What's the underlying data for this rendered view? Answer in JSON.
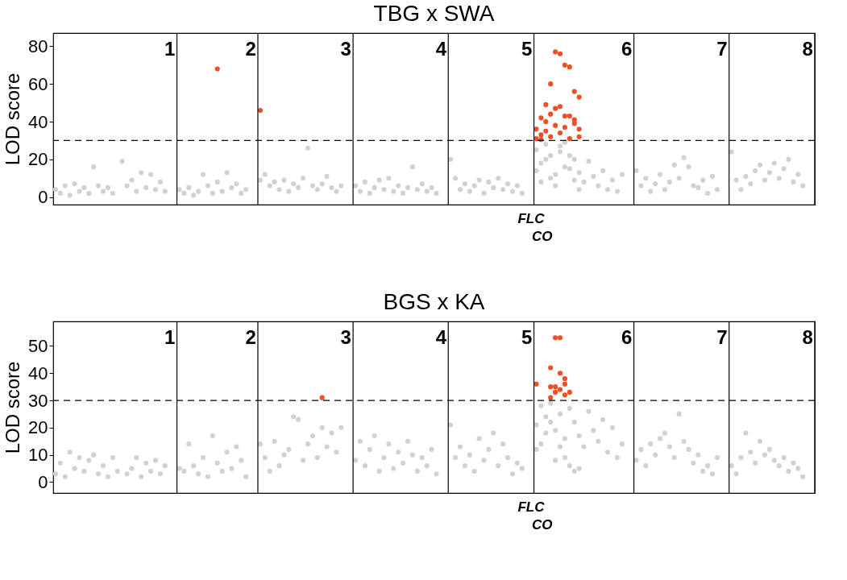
{
  "chart_data": [
    {
      "type": "scatter",
      "title": "TBG x SWA",
      "ylabel": "LOD score",
      "ylim": [
        -4,
        87
      ],
      "yticks": [
        0,
        20,
        40,
        60,
        80
      ],
      "grid": "x",
      "marker": "circle",
      "categories": [
        null,
        null,
        null,
        null,
        null,
        null,
        null,
        null,
        null,
        null,
        null,
        null,
        null,
        null,
        null,
        null,
        null,
        null,
        null,
        null,
        null,
        null,
        null,
        null,
        "1",
        null,
        null,
        null,
        null,
        null,
        null,
        null,
        null,
        null,
        null,
        null,
        null,
        null,
        null,
        null,
        null,
        "2",
        null,
        null,
        null,
        null,
        null,
        null,
        null,
        null,
        null,
        null,
        null,
        null,
        null,
        null,
        null,
        null,
        null,
        null,
        null,
        "3",
        null,
        null,
        null,
        null,
        null,
        null,
        null,
        null,
        null,
        null,
        null,
        null,
        null,
        null,
        null,
        null,
        null,
        null,
        null,
        "4",
        null,
        null,
        null,
        null,
        null,
        null,
        null,
        null,
        null,
        null,
        null,
        null,
        null,
        null,
        null,
        null,
        null,
        "5",
        null,
        null,
        null,
        null,
        null,
        null,
        null,
        null,
        null,
        null,
        null,
        null,
        null,
        null,
        null,
        null,
        null,
        null,
        null,
        null,
        "6",
        null,
        null,
        null,
        null,
        null,
        null,
        null,
        null,
        null,
        null,
        null,
        null,
        null,
        null,
        null,
        null,
        null,
        null,
        null,
        "7",
        null,
        null,
        null,
        null,
        null,
        null,
        null,
        null,
        null,
        null,
        null,
        null,
        null,
        null,
        null,
        null,
        null,
        "8",
        null
      ],
      "series": [
        {
          "color": "#d0d1d3",
          "values": [
            4,
            2,
            6,
            1,
            7,
            3,
            5,
            2,
            16,
            6,
            3,
            5,
            2,
            null,
            19,
            6,
            9,
            3,
            13,
            5,
            12,
            4,
            8,
            3,
            null,
            null,
            4,
            2,
            5,
            1,
            3,
            12,
            6,
            2,
            8,
            3,
            13,
            5,
            7,
            2,
            4,
            null,
            null,
            9,
            12,
            6,
            8,
            4,
            9,
            3,
            7,
            5,
            10,
            26,
            6,
            4,
            7,
            11,
            5,
            3,
            6,
            null,
            null,
            6,
            3,
            8,
            2,
            5,
            9,
            4,
            10,
            3,
            6,
            2,
            5,
            16,
            4,
            7,
            3,
            5,
            2,
            null,
            null,
            20,
            10,
            4,
            7,
            3,
            6,
            9,
            2,
            8,
            5,
            10,
            4,
            7,
            3,
            6,
            2,
            null,
            null,
            25,
            18,
            28,
            22,
            12,
            27,
            29,
            15,
            20,
            13,
            8,
            19,
            11,
            6,
            14,
            4,
            9,
            3,
            12,
            null,
            null,
            14,
            6,
            10,
            3,
            7,
            12,
            4,
            8,
            17,
            10,
            21,
            16,
            6,
            5,
            9,
            2,
            11,
            4,
            null,
            null,
            24,
            9,
            4,
            11,
            7,
            14,
            17,
            9,
            13,
            18,
            10,
            15,
            20,
            8,
            12,
            6,
            null,
            null
          ]
        },
        {
          "color": "#d0d1d3",
          "values": [
            null,
            null,
            null,
            null,
            null,
            null,
            null,
            null,
            null,
            null,
            null,
            null,
            null,
            null,
            null,
            null,
            null,
            null,
            null,
            null,
            null,
            null,
            null,
            null,
            null,
            null,
            null,
            null,
            null,
            null,
            null,
            null,
            null,
            null,
            null,
            null,
            null,
            null,
            null,
            null,
            null,
            null,
            null,
            null,
            null,
            null,
            null,
            null,
            null,
            null,
            null,
            null,
            null,
            null,
            null,
            null,
            null,
            null,
            null,
            null,
            null,
            null,
            null,
            null,
            null,
            null,
            null,
            null,
            null,
            null,
            null,
            null,
            null,
            null,
            null,
            null,
            null,
            null,
            null,
            null,
            null,
            null,
            null,
            null,
            null,
            null,
            null,
            null,
            null,
            null,
            null,
            null,
            null,
            null,
            null,
            null,
            null,
            null,
            null,
            null,
            null,
            14,
            8,
            20,
            10,
            6,
            24,
            16,
            22,
            9,
            4,
            null,
            null,
            null,
            null,
            null,
            null,
            null,
            null,
            null,
            null,
            null,
            null,
            null,
            null,
            null,
            null,
            null,
            null,
            null,
            null,
            null,
            null,
            null,
            null,
            null,
            null,
            null,
            null,
            null,
            null,
            null,
            null,
            null,
            null,
            null,
            null,
            null,
            null,
            null,
            null,
            null,
            null,
            null,
            null,
            null,
            null,
            null,
            null,
            null
          ]
        },
        {
          "color": "#f04e23",
          "values": [
            null,
            null,
            null,
            null,
            null,
            null,
            null,
            null,
            null,
            null,
            null,
            null,
            null,
            null,
            null,
            null,
            null,
            null,
            null,
            null,
            null,
            null,
            null,
            null,
            null,
            null,
            null,
            null,
            null,
            null,
            null,
            null,
            null,
            null,
            68,
            null,
            null,
            null,
            null,
            null,
            null,
            null,
            null,
            46,
            null,
            null,
            null,
            null,
            null,
            null,
            null,
            null,
            null,
            null,
            null,
            null,
            null,
            null,
            null,
            null,
            null,
            null,
            null,
            null,
            null,
            null,
            null,
            null,
            null,
            null,
            null,
            null,
            null,
            null,
            null,
            null,
            null,
            null,
            null,
            null,
            null,
            null,
            null,
            null,
            null,
            null,
            null,
            null,
            null,
            null,
            null,
            null,
            null,
            null,
            null,
            null,
            null,
            null,
            null,
            null,
            null,
            36,
            42,
            49,
            60,
            77,
            76,
            70,
            69,
            56,
            53,
            null,
            null,
            null,
            null,
            null,
            null,
            null,
            null,
            null,
            null,
            null,
            null,
            null,
            null,
            null,
            null,
            null,
            null,
            null,
            null,
            null,
            null,
            null,
            null,
            null,
            null,
            null,
            null,
            null,
            null,
            null,
            null,
            null,
            null,
            null,
            null,
            null,
            null,
            null,
            null,
            null,
            null,
            null,
            null,
            null,
            null,
            null,
            null,
            null
          ]
        },
        {
          "color": "#f04e23",
          "values": [
            null,
            null,
            null,
            null,
            null,
            null,
            null,
            null,
            null,
            null,
            null,
            null,
            null,
            null,
            null,
            null,
            null,
            null,
            null,
            null,
            null,
            null,
            null,
            null,
            null,
            null,
            null,
            null,
            null,
            null,
            null,
            null,
            null,
            null,
            null,
            null,
            null,
            null,
            null,
            null,
            null,
            null,
            null,
            null,
            null,
            null,
            null,
            null,
            null,
            null,
            null,
            null,
            null,
            null,
            null,
            null,
            null,
            null,
            null,
            null,
            null,
            null,
            null,
            null,
            null,
            null,
            null,
            null,
            null,
            null,
            null,
            null,
            null,
            null,
            null,
            null,
            null,
            null,
            null,
            null,
            null,
            null,
            null,
            null,
            null,
            null,
            null,
            null,
            null,
            null,
            null,
            null,
            null,
            null,
            null,
            null,
            null,
            null,
            null,
            null,
            null,
            31,
            33,
            40,
            44,
            47,
            48,
            43,
            43,
            41,
            36,
            null,
            null,
            null,
            null,
            null,
            null,
            null,
            null,
            null,
            null,
            null,
            null,
            null,
            null,
            null,
            null,
            null,
            null,
            null,
            null,
            null,
            null,
            null,
            null,
            null,
            null,
            null,
            null,
            null,
            null,
            null,
            null,
            null,
            null,
            null,
            null,
            null,
            null,
            null,
            null,
            null,
            null,
            null,
            null,
            null,
            null,
            null,
            null,
            null
          ]
        },
        {
          "color": "#f04e23",
          "values": [
            null,
            null,
            null,
            null,
            null,
            null,
            null,
            null,
            null,
            null,
            null,
            null,
            null,
            null,
            null,
            null,
            null,
            null,
            null,
            null,
            null,
            null,
            null,
            null,
            null,
            null,
            null,
            null,
            null,
            null,
            null,
            null,
            null,
            null,
            null,
            null,
            null,
            null,
            null,
            null,
            null,
            null,
            null,
            null,
            null,
            null,
            null,
            null,
            null,
            null,
            null,
            null,
            null,
            null,
            null,
            null,
            null,
            null,
            null,
            null,
            null,
            null,
            null,
            null,
            null,
            null,
            null,
            null,
            null,
            null,
            null,
            null,
            null,
            null,
            null,
            null,
            null,
            null,
            null,
            null,
            null,
            null,
            null,
            null,
            null,
            null,
            null,
            null,
            null,
            null,
            null,
            null,
            null,
            null,
            null,
            null,
            null,
            null,
            null,
            null,
            null,
            null,
            30.5,
            35,
            32,
            38,
            34,
            37,
            31,
            39,
            32,
            null,
            null,
            null,
            null,
            null,
            null,
            null,
            null,
            null,
            null,
            null,
            null,
            null,
            null,
            null,
            null,
            null,
            null,
            null,
            null,
            null,
            null,
            null,
            null,
            null,
            null,
            null,
            null,
            null,
            null,
            null,
            null,
            null,
            null,
            null,
            null,
            null,
            null,
            null,
            null,
            null,
            null,
            null,
            null,
            null,
            null,
            null,
            null,
            null
          ]
        }
      ],
      "ref_lines": [
        {
          "axis": "y",
          "value": 30,
          "color": "#000000",
          "line_style": "dashed"
        }
      ],
      "annotations": [
        "FLC",
        "CO"
      ]
    },
    {
      "type": "scatter",
      "title": "BGS x KA",
      "ylabel": "LOD score",
      "ylim": [
        -4,
        59
      ],
      "yticks": [
        0,
        10,
        20,
        30,
        40,
        50
      ],
      "grid": "x",
      "marker": "circle",
      "categories": [
        null,
        null,
        null,
        null,
        null,
        null,
        null,
        null,
        null,
        null,
        null,
        null,
        null,
        null,
        null,
        null,
        null,
        null,
        null,
        null,
        null,
        null,
        null,
        null,
        "1",
        null,
        null,
        null,
        null,
        null,
        null,
        null,
        null,
        null,
        null,
        null,
        null,
        null,
        null,
        null,
        null,
        "2",
        null,
        null,
        null,
        null,
        null,
        null,
        null,
        null,
        null,
        null,
        null,
        null,
        null,
        null,
        null,
        null,
        null,
        null,
        null,
        "3",
        null,
        null,
        null,
        null,
        null,
        null,
        null,
        null,
        null,
        null,
        null,
        null,
        null,
        null,
        null,
        null,
        null,
        null,
        null,
        "4",
        null,
        null,
        null,
        null,
        null,
        null,
        null,
        null,
        null,
        null,
        null,
        null,
        null,
        null,
        null,
        null,
        null,
        "5",
        null,
        null,
        null,
        null,
        null,
        null,
        null,
        null,
        null,
        null,
        null,
        null,
        null,
        null,
        null,
        null,
        null,
        null,
        null,
        null,
        "6",
        null,
        null,
        null,
        null,
        null,
        null,
        null,
        null,
        null,
        null,
        null,
        null,
        null,
        null,
        null,
        null,
        null,
        null,
        null,
        "7",
        null,
        null,
        null,
        null,
        null,
        null,
        null,
        null,
        null,
        null,
        null,
        null,
        null,
        null,
        null,
        null,
        null,
        "8",
        null
      ],
      "series": [
        {
          "color": "#d0d1d3",
          "values": [
            3,
            7,
            2,
            11,
            5,
            9,
            4,
            8,
            10,
            3,
            6,
            2,
            9,
            4,
            null,
            3,
            5,
            9,
            2,
            7,
            4,
            8,
            3,
            6,
            null,
            null,
            5,
            4,
            14,
            6,
            3,
            9,
            2,
            17,
            7,
            4,
            11,
            5,
            13,
            8,
            2,
            null,
            null,
            14,
            9,
            4,
            15,
            6,
            10,
            12,
            24,
            23,
            8,
            14,
            17,
            9,
            20,
            13,
            18,
            11,
            20,
            null,
            null,
            8,
            15,
            6,
            12,
            17,
            4,
            9,
            14,
            5,
            11,
            7,
            15,
            10,
            4,
            9,
            6,
            12,
            3,
            null,
            null,
            21,
            9,
            13,
            6,
            10,
            4,
            16,
            8,
            12,
            18,
            6,
            14,
            9,
            3,
            7,
            5,
            null,
            null,
            21,
            28,
            24,
            29,
            19,
            25,
            16,
            27,
            22,
            17,
            13,
            26,
            19,
            15,
            23,
            11,
            20,
            9,
            14,
            null,
            null,
            8,
            12,
            6,
            14,
            10,
            16,
            18,
            13,
            9,
            25,
            15,
            12,
            7,
            10,
            4,
            6,
            3,
            9,
            null,
            null,
            6,
            3,
            9,
            18,
            11,
            7,
            15,
            10,
            12,
            8,
            6,
            9,
            4,
            7,
            5,
            2,
            null,
            null
          ]
        },
        {
          "color": "#d0d1d3",
          "values": [
            null,
            null,
            null,
            null,
            null,
            null,
            null,
            null,
            null,
            null,
            null,
            null,
            null,
            null,
            null,
            null,
            null,
            null,
            null,
            null,
            null,
            null,
            null,
            null,
            null,
            null,
            null,
            null,
            null,
            null,
            null,
            null,
            null,
            null,
            null,
            null,
            null,
            null,
            null,
            null,
            null,
            null,
            null,
            null,
            null,
            null,
            null,
            null,
            null,
            null,
            null,
            null,
            null,
            null,
            null,
            null,
            null,
            null,
            null,
            null,
            null,
            null,
            null,
            null,
            null,
            null,
            null,
            null,
            null,
            null,
            null,
            null,
            null,
            null,
            null,
            null,
            null,
            null,
            null,
            null,
            null,
            null,
            null,
            null,
            null,
            null,
            null,
            null,
            null,
            null,
            null,
            null,
            null,
            null,
            null,
            null,
            null,
            null,
            null,
            null,
            null,
            12,
            14,
            18,
            22,
            8,
            13,
            9,
            6,
            4,
            5,
            null,
            null,
            null,
            null,
            null,
            null,
            null,
            null,
            null,
            null,
            null,
            null,
            null,
            null,
            null,
            null,
            null,
            null,
            null,
            null,
            null,
            null,
            null,
            null,
            null,
            null,
            null,
            null,
            null,
            null,
            null,
            null,
            null,
            null,
            null,
            null,
            null,
            null,
            null,
            null,
            null,
            null,
            null,
            null,
            null,
            null,
            null,
            null,
            null
          ]
        },
        {
          "color": "#f04e23",
          "values": [
            null,
            null,
            null,
            null,
            null,
            null,
            null,
            null,
            null,
            null,
            null,
            null,
            null,
            null,
            null,
            null,
            null,
            null,
            null,
            null,
            null,
            null,
            null,
            null,
            null,
            null,
            null,
            null,
            null,
            null,
            null,
            null,
            null,
            null,
            null,
            null,
            null,
            null,
            null,
            null,
            null,
            null,
            null,
            null,
            null,
            null,
            null,
            null,
            null,
            null,
            null,
            null,
            null,
            null,
            null,
            null,
            31,
            null,
            null,
            null,
            null,
            null,
            null,
            null,
            null,
            null,
            null,
            null,
            null,
            null,
            null,
            null,
            null,
            null,
            null,
            null,
            null,
            null,
            null,
            null,
            null,
            null,
            null,
            null,
            null,
            null,
            null,
            null,
            null,
            null,
            null,
            null,
            null,
            null,
            null,
            null,
            null,
            null,
            null,
            null,
            null,
            36,
            null,
            null,
            42,
            53,
            53,
            38,
            33,
            null,
            null,
            null,
            null,
            null,
            null,
            null,
            null,
            null,
            null,
            null,
            null,
            null,
            null,
            null,
            null,
            null,
            null,
            null,
            null,
            null,
            null,
            null,
            null,
            null,
            null,
            null,
            null,
            null,
            null,
            null,
            null,
            null,
            null,
            null,
            null,
            null,
            null,
            null,
            null,
            null,
            null,
            null,
            null,
            null,
            null,
            null,
            null,
            null,
            null,
            null
          ]
        },
        {
          "color": "#f04e23",
          "values": [
            null,
            null,
            null,
            null,
            null,
            null,
            null,
            null,
            null,
            null,
            null,
            null,
            null,
            null,
            null,
            null,
            null,
            null,
            null,
            null,
            null,
            null,
            null,
            null,
            null,
            null,
            null,
            null,
            null,
            null,
            null,
            null,
            null,
            null,
            null,
            null,
            null,
            null,
            null,
            null,
            null,
            null,
            null,
            null,
            null,
            null,
            null,
            null,
            null,
            null,
            null,
            null,
            null,
            null,
            null,
            null,
            null,
            null,
            null,
            null,
            null,
            null,
            null,
            null,
            null,
            null,
            null,
            null,
            null,
            null,
            null,
            null,
            null,
            null,
            null,
            null,
            null,
            null,
            null,
            null,
            null,
            null,
            null,
            null,
            null,
            null,
            null,
            null,
            null,
            null,
            null,
            null,
            null,
            null,
            null,
            null,
            null,
            null,
            null,
            null,
            null,
            null,
            null,
            null,
            35,
            35,
            40,
            36,
            null,
            null,
            null,
            null,
            null,
            null,
            null,
            null,
            null,
            null,
            null,
            null,
            null,
            null,
            null,
            null,
            null,
            null,
            null,
            null,
            null,
            null,
            null,
            null,
            null,
            null,
            null,
            null,
            null,
            null,
            null,
            null,
            null,
            null,
            null,
            null,
            null,
            null,
            null,
            null,
            null,
            null,
            null,
            null,
            null,
            null,
            null,
            null,
            null,
            null,
            null,
            null
          ]
        },
        {
          "color": "#f04e23",
          "values": [
            null,
            null,
            null,
            null,
            null,
            null,
            null,
            null,
            null,
            null,
            null,
            null,
            null,
            null,
            null,
            null,
            null,
            null,
            null,
            null,
            null,
            null,
            null,
            null,
            null,
            null,
            null,
            null,
            null,
            null,
            null,
            null,
            null,
            null,
            null,
            null,
            null,
            null,
            null,
            null,
            null,
            null,
            null,
            null,
            null,
            null,
            null,
            null,
            null,
            null,
            null,
            null,
            null,
            null,
            null,
            null,
            null,
            null,
            null,
            null,
            null,
            null,
            null,
            null,
            null,
            null,
            null,
            null,
            null,
            null,
            null,
            null,
            null,
            null,
            null,
            null,
            null,
            null,
            null,
            null,
            null,
            null,
            null,
            null,
            null,
            null,
            null,
            null,
            null,
            null,
            null,
            null,
            null,
            null,
            null,
            null,
            null,
            null,
            null,
            null,
            null,
            null,
            null,
            null,
            31,
            33,
            34,
            32,
            null,
            null,
            null,
            null,
            null,
            null,
            null,
            null,
            null,
            null,
            null,
            null,
            null,
            null,
            null,
            null,
            null,
            null,
            null,
            null,
            null,
            null,
            null,
            null,
            null,
            null,
            null,
            null,
            null,
            null,
            null,
            null,
            null,
            null,
            null,
            null,
            null,
            null,
            null,
            null,
            null,
            null,
            null,
            null,
            null,
            null,
            null,
            null,
            null,
            null,
            null,
            null
          ]
        }
      ],
      "ref_lines": [
        {
          "axis": "y",
          "value": 30,
          "color": "#000000",
          "line_style": "dashed"
        }
      ],
      "annotations": [
        "FLC",
        "CO"
      ]
    }
  ]
}
